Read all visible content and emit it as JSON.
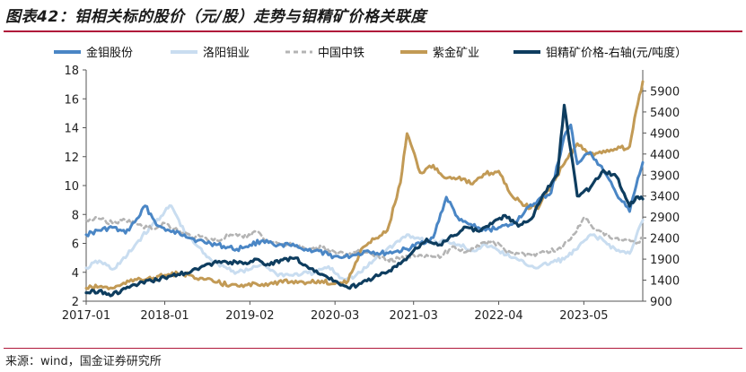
{
  "header": {
    "title": "图表42：钼相关标的股价（元/股）走势与钼精矿价格关联度"
  },
  "footer": {
    "source": "来源：wind，国金证券研究所"
  },
  "chart_data": {
    "type": "line",
    "title": "图表42：钼相关标的股价（元/股）走势与钼精矿价格关联度",
    "legend_position": "top",
    "grid": false,
    "x_range": [
      "2017-01",
      "2024-02"
    ],
    "x_ticks": [
      "2017-01",
      "2018-01",
      "2019-02",
      "2020-03",
      "2021-03",
      "2022-04",
      "2023-05"
    ],
    "y_left": {
      "label": "",
      "range": [
        2,
        18
      ],
      "ticks": [
        2,
        4,
        6,
        8,
        10,
        12,
        14,
        16,
        18
      ]
    },
    "y_right": {
      "label": "",
      "range": [
        900,
        6400
      ],
      "ticks": [
        900,
        1400,
        1900,
        2400,
        2900,
        3400,
        3900,
        4400,
        4900,
        5400,
        5900
      ]
    },
    "series": [
      {
        "name": "金钼股份",
        "axis": "left",
        "color": "#4a86c5",
        "style": "solid",
        "points": [
          [
            "2017-01",
            6.6
          ],
          [
            "2017-03",
            6.9
          ],
          [
            "2017-05",
            7.1
          ],
          [
            "2017-07",
            6.7
          ],
          [
            "2017-09",
            7.8
          ],
          [
            "2017-10",
            8.6
          ],
          [
            "2017-12",
            7.2
          ],
          [
            "2018-02",
            6.8
          ],
          [
            "2018-04",
            6.6
          ],
          [
            "2018-06",
            6.2
          ],
          [
            "2018-08",
            6.0
          ],
          [
            "2018-10",
            5.8
          ],
          [
            "2018-12",
            5.6
          ],
          [
            "2019-02",
            5.9
          ],
          [
            "2019-04",
            6.2
          ],
          [
            "2019-06",
            5.8
          ],
          [
            "2019-08",
            5.9
          ],
          [
            "2019-10",
            5.6
          ],
          [
            "2019-12",
            5.5
          ],
          [
            "2020-02",
            5.2
          ],
          [
            "2020-04",
            5.0
          ],
          [
            "2020-06",
            5.2
          ],
          [
            "2020-08",
            5.5
          ],
          [
            "2020-10",
            5.3
          ],
          [
            "2020-12",
            5.4
          ],
          [
            "2021-02",
            5.6
          ],
          [
            "2021-04",
            6.0
          ],
          [
            "2021-06",
            6.4
          ],
          [
            "2021-08",
            9.2
          ],
          [
            "2021-10",
            7.6
          ],
          [
            "2021-12",
            7.2
          ],
          [
            "2022-02",
            6.9
          ],
          [
            "2022-04",
            7.1
          ],
          [
            "2022-06",
            7.3
          ],
          [
            "2022-08",
            8.2
          ],
          [
            "2022-10",
            9.0
          ],
          [
            "2022-12",
            9.5
          ],
          [
            "2023-02",
            13.4
          ],
          [
            "2023-03",
            14.2
          ],
          [
            "2023-04",
            11.5
          ],
          [
            "2023-06",
            12.3
          ],
          [
            "2023-08",
            11.0
          ],
          [
            "2023-10",
            9.4
          ],
          [
            "2023-12",
            8.2
          ],
          [
            "2024-01",
            10.0
          ],
          [
            "2024-02",
            11.6
          ]
        ]
      },
      {
        "name": "洛阳钼业",
        "axis": "left",
        "color": "#c9ddf0",
        "style": "solid",
        "points": [
          [
            "2017-01",
            4.3
          ],
          [
            "2017-03",
            4.8
          ],
          [
            "2017-05",
            4.2
          ],
          [
            "2017-07",
            5.0
          ],
          [
            "2017-09",
            6.2
          ],
          [
            "2017-11",
            7.2
          ],
          [
            "2018-01",
            8.2
          ],
          [
            "2018-02",
            8.6
          ],
          [
            "2018-04",
            6.8
          ],
          [
            "2018-06",
            5.8
          ],
          [
            "2018-08",
            4.9
          ],
          [
            "2018-10",
            4.4
          ],
          [
            "2018-12",
            4.0
          ],
          [
            "2019-02",
            4.2
          ],
          [
            "2019-04",
            4.6
          ],
          [
            "2019-06",
            3.9
          ],
          [
            "2019-08",
            3.8
          ],
          [
            "2019-10",
            3.9
          ],
          [
            "2019-12",
            4.0
          ],
          [
            "2020-02",
            4.4
          ],
          [
            "2020-04",
            3.6
          ],
          [
            "2020-06",
            3.7
          ],
          [
            "2020-08",
            4.4
          ],
          [
            "2020-10",
            5.3
          ],
          [
            "2020-12",
            5.9
          ],
          [
            "2021-02",
            6.6
          ],
          [
            "2021-04",
            6.3
          ],
          [
            "2021-06",
            6.0
          ],
          [
            "2021-08",
            6.2
          ],
          [
            "2021-10",
            5.9
          ],
          [
            "2021-12",
            5.5
          ],
          [
            "2022-02",
            5.9
          ],
          [
            "2022-04",
            5.5
          ],
          [
            "2022-06",
            5.0
          ],
          [
            "2022-08",
            4.6
          ],
          [
            "2022-10",
            4.3
          ],
          [
            "2022-12",
            4.7
          ],
          [
            "2023-02",
            4.9
          ],
          [
            "2023-04",
            5.6
          ],
          [
            "2023-06",
            6.6
          ],
          [
            "2023-08",
            6.2
          ],
          [
            "2023-10",
            5.5
          ],
          [
            "2023-12",
            5.3
          ],
          [
            "2024-01",
            6.5
          ],
          [
            "2024-02",
            7.6
          ]
        ]
      },
      {
        "name": "中国中铁",
        "axis": "left",
        "color": "#b4b4b4",
        "style": "dashed",
        "points": [
          [
            "2017-01",
            7.6
          ],
          [
            "2017-03",
            7.7
          ],
          [
            "2017-05",
            7.4
          ],
          [
            "2017-07",
            7.6
          ],
          [
            "2017-09",
            7.3
          ],
          [
            "2017-11",
            7.0
          ],
          [
            "2018-01",
            7.4
          ],
          [
            "2018-03",
            6.9
          ],
          [
            "2018-05",
            6.5
          ],
          [
            "2018-07",
            6.4
          ],
          [
            "2018-09",
            6.2
          ],
          [
            "2018-11",
            6.6
          ],
          [
            "2019-01",
            6.4
          ],
          [
            "2019-03",
            6.8
          ],
          [
            "2019-05",
            6.1
          ],
          [
            "2019-07",
            6.0
          ],
          [
            "2019-09",
            5.8
          ],
          [
            "2019-11",
            5.6
          ],
          [
            "2020-01",
            5.7
          ],
          [
            "2020-03",
            5.4
          ],
          [
            "2020-05",
            5.2
          ],
          [
            "2020-07",
            5.6
          ],
          [
            "2020-09",
            5.1
          ],
          [
            "2020-11",
            4.9
          ],
          [
            "2021-01",
            4.9
          ],
          [
            "2021-03",
            5.2
          ],
          [
            "2021-05",
            5.2
          ],
          [
            "2021-07",
            5.0
          ],
          [
            "2021-09",
            5.8
          ],
          [
            "2021-11",
            5.4
          ],
          [
            "2022-01",
            5.8
          ],
          [
            "2022-03",
            6.2
          ],
          [
            "2022-05",
            5.5
          ],
          [
            "2022-07",
            5.3
          ],
          [
            "2022-09",
            5.2
          ],
          [
            "2022-11",
            5.4
          ],
          [
            "2023-01",
            5.6
          ],
          [
            "2023-03",
            6.3
          ],
          [
            "2023-05",
            7.8
          ],
          [
            "2023-07",
            6.9
          ],
          [
            "2023-09",
            6.4
          ],
          [
            "2023-11",
            6.2
          ],
          [
            "2024-01",
            6.0
          ],
          [
            "2024-02",
            6.4
          ]
        ]
      },
      {
        "name": "紫金矿业",
        "axis": "left",
        "color": "#c29a55",
        "style": "solid",
        "points": [
          [
            "2017-01",
            2.9
          ],
          [
            "2017-03",
            3.0
          ],
          [
            "2017-05",
            2.9
          ],
          [
            "2017-07",
            3.2
          ],
          [
            "2017-09",
            3.6
          ],
          [
            "2017-11",
            3.5
          ],
          [
            "2018-01",
            3.8
          ],
          [
            "2018-03",
            3.9
          ],
          [
            "2018-05",
            3.8
          ],
          [
            "2018-07",
            3.5
          ],
          [
            "2018-09",
            3.3
          ],
          [
            "2018-11",
            3.1
          ],
          [
            "2019-01",
            3.0
          ],
          [
            "2019-03",
            3.2
          ],
          [
            "2019-05",
            3.2
          ],
          [
            "2019-07",
            3.3
          ],
          [
            "2019-09",
            3.4
          ],
          [
            "2019-11",
            3.3
          ],
          [
            "2020-01",
            3.4
          ],
          [
            "2020-03",
            3.2
          ],
          [
            "2020-05",
            3.4
          ],
          [
            "2020-07",
            5.6
          ],
          [
            "2020-09",
            6.3
          ],
          [
            "2020-11",
            6.9
          ],
          [
            "2021-01",
            10.2
          ],
          [
            "2021-02",
            13.6
          ],
          [
            "2021-04",
            10.9
          ],
          [
            "2021-06",
            11.4
          ],
          [
            "2021-08",
            10.5
          ],
          [
            "2021-10",
            10.6
          ],
          [
            "2021-12",
            10.1
          ],
          [
            "2022-02",
            10.8
          ],
          [
            "2022-04",
            11.0
          ],
          [
            "2022-06",
            9.3
          ],
          [
            "2022-08",
            8.6
          ],
          [
            "2022-10",
            8.4
          ],
          [
            "2022-12",
            10.0
          ],
          [
            "2023-02",
            11.5
          ],
          [
            "2023-04",
            12.9
          ],
          [
            "2023-06",
            12.2
          ],
          [
            "2023-08",
            12.4
          ],
          [
            "2023-10",
            12.5
          ],
          [
            "2023-12",
            12.7
          ],
          [
            "2024-01",
            15.2
          ],
          [
            "2024-02",
            17.2
          ]
        ]
      },
      {
        "name": "钼精矿价格-右轴(元/吨度）",
        "axis": "right",
        "color": "#0e3d5f",
        "style": "solid",
        "points": [
          [
            "2017-01",
            1100
          ],
          [
            "2017-03",
            1150
          ],
          [
            "2017-05",
            1050
          ],
          [
            "2017-07",
            1200
          ],
          [
            "2017-09",
            1310
          ],
          [
            "2017-11",
            1380
          ],
          [
            "2018-01",
            1460
          ],
          [
            "2018-03",
            1540
          ],
          [
            "2018-05",
            1600
          ],
          [
            "2018-07",
            1740
          ],
          [
            "2018-09",
            1820
          ],
          [
            "2018-11",
            1830
          ],
          [
            "2019-01",
            1790
          ],
          [
            "2019-03",
            1900
          ],
          [
            "2019-05",
            1760
          ],
          [
            "2019-07",
            1880
          ],
          [
            "2019-09",
            1930
          ],
          [
            "2019-11",
            1680
          ],
          [
            "2020-01",
            1540
          ],
          [
            "2020-03",
            1380
          ],
          [
            "2020-05",
            1220
          ],
          [
            "2020-07",
            1320
          ],
          [
            "2020-09",
            1480
          ],
          [
            "2020-11",
            1590
          ],
          [
            "2021-01",
            1790
          ],
          [
            "2021-03",
            2100
          ],
          [
            "2021-05",
            2380
          ],
          [
            "2021-07",
            2240
          ],
          [
            "2021-09",
            2450
          ],
          [
            "2021-11",
            2660
          ],
          [
            "2022-01",
            2560
          ],
          [
            "2022-03",
            2740
          ],
          [
            "2022-05",
            2940
          ],
          [
            "2022-07",
            2680
          ],
          [
            "2022-09",
            2860
          ],
          [
            "2022-11",
            3480
          ],
          [
            "2023-01",
            3920
          ],
          [
            "2023-02",
            5560
          ],
          [
            "2023-03",
            4480
          ],
          [
            "2023-04",
            3400
          ],
          [
            "2023-06",
            3600
          ],
          [
            "2023-08",
            4010
          ],
          [
            "2023-10",
            3860
          ],
          [
            "2023-12",
            3160
          ],
          [
            "2024-01",
            3380
          ],
          [
            "2024-02",
            3330
          ]
        ]
      }
    ]
  }
}
